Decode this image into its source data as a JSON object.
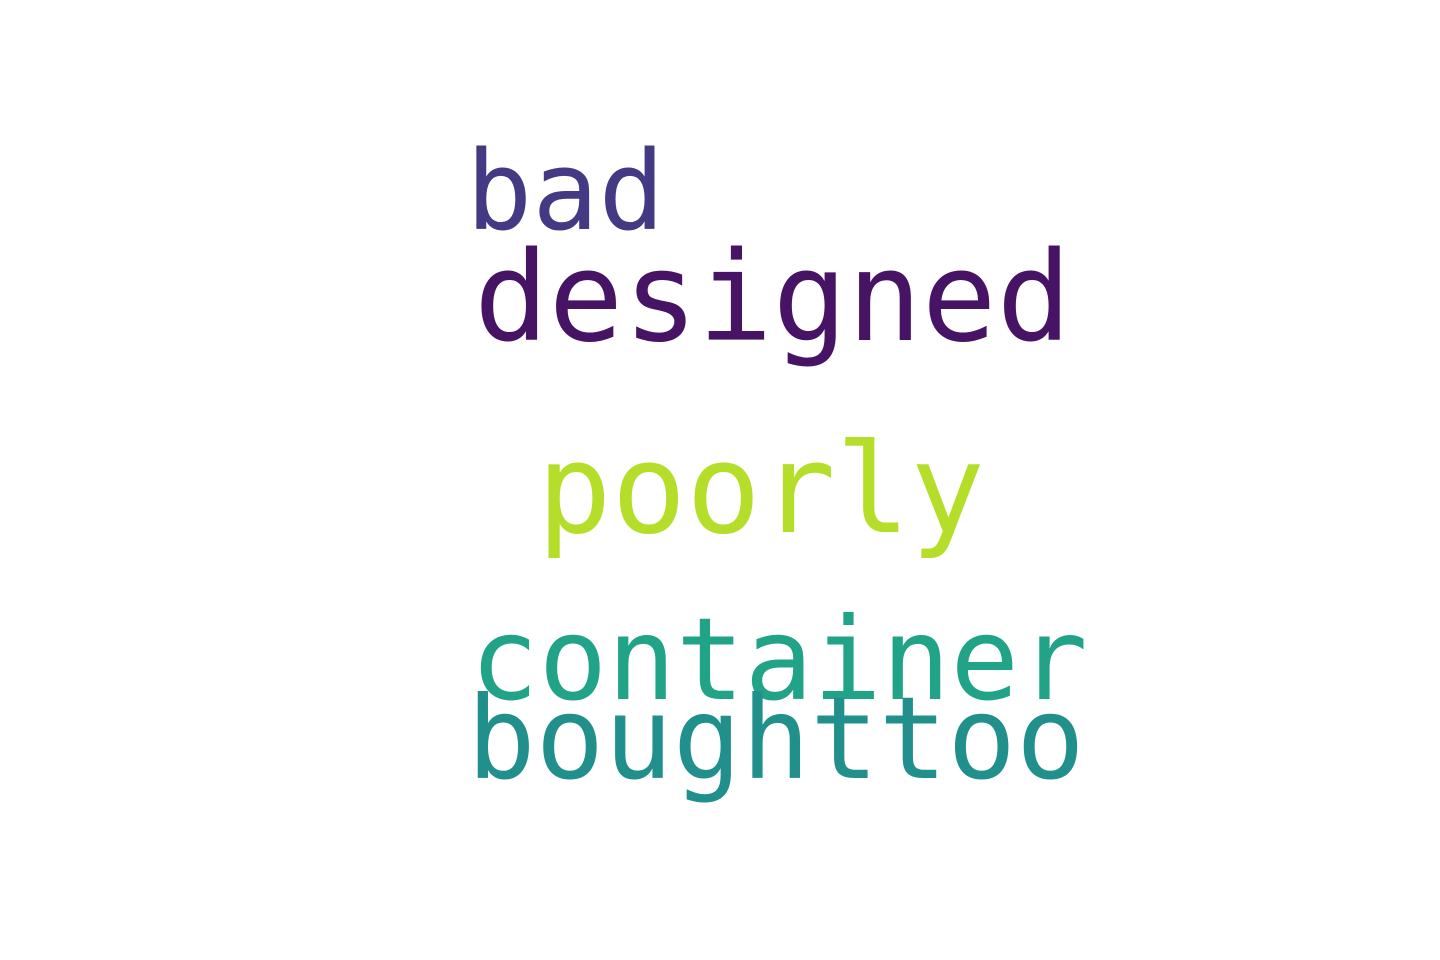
{
  "words": [
    {
      "text": "bad",
      "color": "#443a83"
    },
    {
      "text": "designed",
      "color": "#471365"
    },
    {
      "text": "poorly",
      "color": "#b5de2b"
    },
    {
      "text": "container",
      "color": "#20a386"
    },
    {
      "text": "boughttoo",
      "color": "#21908d"
    }
  ]
}
